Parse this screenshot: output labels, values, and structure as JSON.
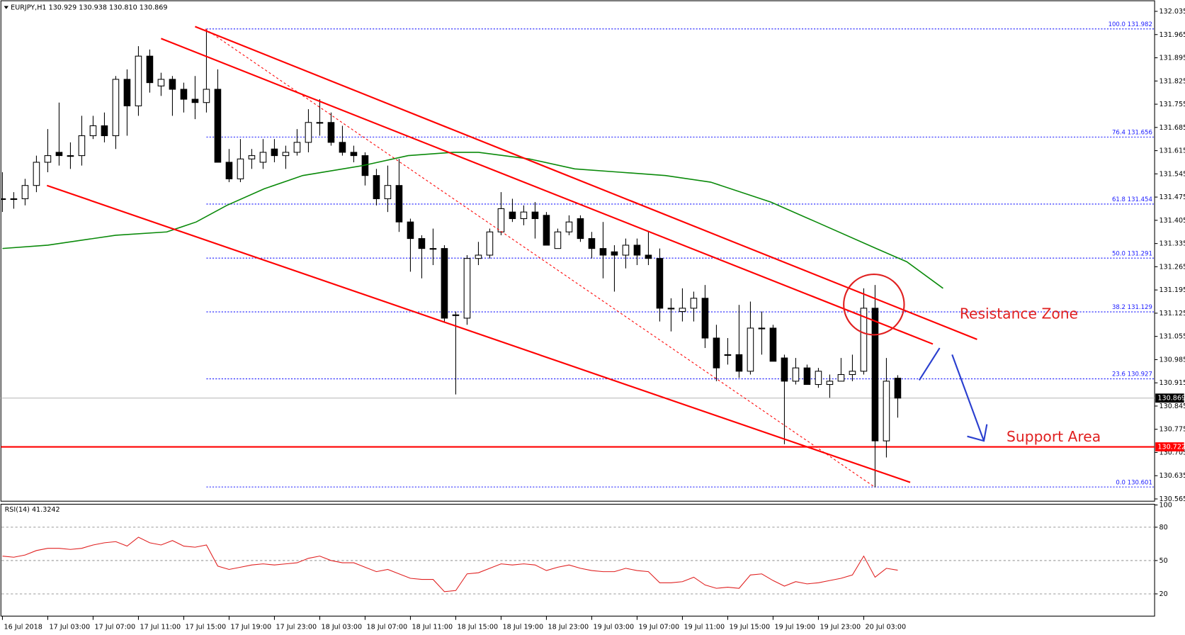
{
  "chart_data": {
    "type": "candlestick",
    "title": "EURJPY,H1  130.929 130.938 130.810 130.869",
    "ylim": [
      130.565,
      132.035
    ],
    "yticks": [
      132.035,
      131.965,
      131.895,
      131.825,
      131.755,
      131.685,
      131.615,
      131.545,
      131.475,
      131.405,
      131.335,
      131.265,
      131.195,
      131.125,
      131.055,
      130.985,
      130.915,
      130.845,
      130.775,
      130.705,
      130.635,
      130.565
    ],
    "categories": [
      "16 Jul 2018",
      null,
      null,
      null,
      "17 Jul 03:00",
      null,
      null,
      null,
      "17 Jul 07:00",
      null,
      null,
      null,
      "17 Jul 11:00",
      null,
      null,
      null,
      "17 Jul 15:00",
      null,
      null,
      null,
      "17 Jul 19:00",
      null,
      null,
      null,
      "17 Jul 23:00",
      null,
      null,
      null,
      "18 Jul 03:00",
      null,
      null,
      null,
      "18 Jul 07:00",
      null,
      null,
      null,
      "18 Jul 11:00",
      null,
      null,
      null,
      "18 Jul 15:00",
      null,
      null,
      null,
      "18 Jul 19:00",
      null,
      null,
      null,
      "18 Jul 23:00",
      null,
      null,
      null,
      "19 Jul 03:00",
      null,
      null,
      null,
      "19 Jul 07:00",
      null,
      null,
      null,
      "19 Jul 11:00",
      null,
      null,
      null,
      "19 Jul 15:00",
      null,
      null,
      null,
      "19 Jul 19:00",
      null,
      null,
      null,
      "19 Jul 23:00",
      null,
      null,
      null,
      "20 Jul 03:00",
      null,
      null,
      null
    ],
    "ohlc": [
      [
        131.47,
        131.55,
        131.43,
        131.47
      ],
      [
        131.47,
        131.49,
        131.44,
        131.47
      ],
      [
        131.47,
        131.53,
        131.45,
        131.51
      ],
      [
        131.51,
        131.6,
        131.49,
        131.58
      ],
      [
        131.58,
        131.68,
        131.55,
        131.6
      ],
      [
        131.61,
        131.76,
        131.57,
        131.6
      ],
      [
        131.6,
        131.64,
        131.56,
        131.6
      ],
      [
        131.6,
        131.72,
        131.57,
        131.66
      ],
      [
        131.66,
        131.72,
        131.65,
        131.69
      ],
      [
        131.69,
        131.73,
        131.64,
        131.66
      ],
      [
        131.66,
        131.84,
        131.62,
        131.83
      ],
      [
        131.83,
        131.86,
        131.66,
        131.75
      ],
      [
        131.75,
        131.93,
        131.72,
        131.9
      ],
      [
        131.9,
        131.92,
        131.79,
        131.82
      ],
      [
        131.81,
        131.85,
        131.78,
        131.83
      ],
      [
        131.83,
        131.84,
        131.72,
        131.8
      ],
      [
        131.8,
        131.82,
        131.73,
        131.77
      ],
      [
        131.77,
        131.84,
        131.71,
        131.76
      ],
      [
        131.76,
        131.98,
        131.73,
        131.8
      ],
      [
        131.8,
        131.86,
        131.58,
        131.58
      ],
      [
        131.58,
        131.62,
        131.52,
        131.53
      ],
      [
        131.53,
        131.65,
        131.52,
        131.59
      ],
      [
        131.59,
        131.62,
        131.56,
        131.6
      ],
      [
        131.58,
        131.65,
        131.56,
        131.61
      ],
      [
        131.62,
        131.65,
        131.58,
        131.6
      ],
      [
        131.6,
        131.63,
        131.56,
        131.61
      ],
      [
        131.61,
        131.68,
        131.6,
        131.64
      ],
      [
        131.64,
        131.74,
        131.61,
        131.7
      ],
      [
        131.7,
        131.77,
        131.66,
        131.7
      ],
      [
        131.7,
        131.73,
        131.63,
        131.64
      ],
      [
        131.64,
        131.69,
        131.6,
        131.61
      ],
      [
        131.61,
        131.63,
        131.58,
        131.6
      ],
      [
        131.6,
        131.61,
        131.51,
        131.54
      ],
      [
        131.54,
        131.56,
        131.45,
        131.47
      ],
      [
        131.47,
        131.57,
        131.43,
        131.51
      ],
      [
        131.51,
        131.59,
        131.37,
        131.4
      ],
      [
        131.4,
        131.41,
        131.25,
        131.35
      ],
      [
        131.35,
        131.36,
        131.23,
        131.32
      ],
      [
        131.32,
        131.38,
        131.27,
        131.32
      ],
      [
        131.32,
        131.33,
        131.1,
        131.11
      ],
      [
        131.12,
        131.13,
        130.88,
        131.12
      ],
      [
        131.11,
        131.3,
        131.09,
        131.29
      ],
      [
        131.29,
        131.34,
        131.27,
        131.3
      ],
      [
        131.3,
        131.38,
        131.29,
        131.37
      ],
      [
        131.37,
        131.49,
        131.36,
        131.44
      ],
      [
        131.43,
        131.47,
        131.4,
        131.41
      ],
      [
        131.41,
        131.45,
        131.39,
        131.43
      ],
      [
        131.43,
        131.46,
        131.35,
        131.41
      ],
      [
        131.42,
        131.43,
        131.33,
        131.33
      ],
      [
        131.32,
        131.38,
        131.32,
        131.37
      ],
      [
        131.37,
        131.42,
        131.36,
        131.4
      ],
      [
        131.41,
        131.42,
        131.34,
        131.35
      ],
      [
        131.35,
        131.37,
        131.29,
        131.32
      ],
      [
        131.32,
        131.4,
        131.23,
        131.3
      ],
      [
        131.31,
        131.33,
        131.19,
        131.3
      ],
      [
        131.3,
        131.35,
        131.26,
        131.33
      ],
      [
        131.33,
        131.35,
        131.27,
        131.3
      ],
      [
        131.3,
        131.37,
        131.27,
        131.29
      ],
      [
        131.29,
        131.32,
        131.1,
        131.14
      ],
      [
        131.14,
        131.17,
        131.07,
        131.14
      ],
      [
        131.13,
        131.2,
        131.1,
        131.14
      ],
      [
        131.14,
        131.19,
        131.1,
        131.17
      ],
      [
        131.17,
        131.21,
        131.02,
        131.05
      ],
      [
        131.05,
        131.09,
        130.92,
        130.96
      ],
      [
        131.0,
        131.05,
        130.97,
        131.0
      ],
      [
        131.0,
        131.15,
        130.93,
        130.95
      ],
      [
        130.95,
        131.16,
        130.94,
        131.08
      ],
      [
        131.08,
        131.13,
        131.0,
        131.08
      ],
      [
        131.08,
        131.09,
        130.98,
        130.98
      ],
      [
        130.99,
        131.0,
        130.73,
        130.92
      ],
      [
        130.92,
        130.99,
        130.91,
        130.96
      ],
      [
        130.96,
        130.97,
        130.91,
        130.91
      ],
      [
        130.91,
        130.96,
        130.9,
        130.95
      ],
      [
        130.91,
        130.94,
        130.87,
        130.92
      ],
      [
        130.92,
        130.99,
        130.92,
        130.94
      ],
      [
        130.94,
        131.0,
        130.92,
        130.95
      ],
      [
        130.95,
        131.2,
        130.94,
        131.14
      ],
      [
        131.14,
        131.21,
        130.6,
        130.74
      ],
      [
        130.74,
        130.99,
        130.69,
        130.92
      ],
      [
        130.929,
        130.938,
        130.81,
        130.869
      ]
    ],
    "ma": {
      "color": "#0a8a0a",
      "x": [
        0,
        4,
        10,
        14.5,
        17.1,
        19.8,
        23.1,
        26.5,
        31.8,
        35.8,
        39.8,
        42,
        46.5,
        50.5,
        54.5,
        58.5,
        62.5,
        67.8,
        71.8,
        77.1,
        79.8,
        83
      ],
      "values": [
        131.32,
        131.33,
        131.36,
        131.37,
        131.4,
        131.45,
        131.5,
        131.54,
        131.57,
        131.6,
        131.61,
        131.61,
        131.59,
        131.56,
        131.55,
        131.54,
        131.52,
        131.46,
        131.4,
        131.32,
        131.28,
        131.2
      ]
    },
    "fib_levels": [
      {
        "value": 131.982,
        "label": "100.0 131.982"
      },
      {
        "value": 131.656,
        "label": "76.4 131.656"
      },
      {
        "value": 131.454,
        "label": "61.8 131.454"
      },
      {
        "value": 131.291,
        "label": "50.0 131.291"
      },
      {
        "value": 131.129,
        "label": "38.2 131.129"
      },
      {
        "value": 130.927,
        "label": "23.6 130.927"
      },
      {
        "value": 130.601,
        "label": "0.0 130.601"
      }
    ],
    "current_price": 130.869,
    "support": 130.722,
    "annotations": [
      "Resistance Zone",
      "Support Area"
    ],
    "rsi": {
      "label": "RSI(14) 41.3242",
      "color": "#e02020",
      "ylim": [
        0,
        100
      ],
      "yticks": [
        100,
        80,
        50,
        20
      ],
      "values": [
        54,
        53,
        55,
        59,
        61,
        61,
        60,
        61,
        64,
        66,
        67,
        63,
        71,
        66,
        64,
        68,
        63,
        62,
        64,
        45,
        42,
        44,
        46,
        47,
        46,
        47,
        48,
        52,
        54,
        50,
        48,
        48,
        44,
        40,
        42,
        38,
        34,
        33,
        33,
        22,
        23,
        38,
        39,
        43,
        47,
        46,
        47,
        46,
        41,
        44,
        46,
        43,
        41,
        40,
        40,
        43,
        41,
        40,
        30,
        30,
        31,
        35,
        28,
        25,
        26,
        25,
        37,
        38,
        32,
        27,
        31,
        29,
        30,
        32,
        34,
        37,
        54,
        35,
        43,
        41.3242
      ]
    }
  }
}
